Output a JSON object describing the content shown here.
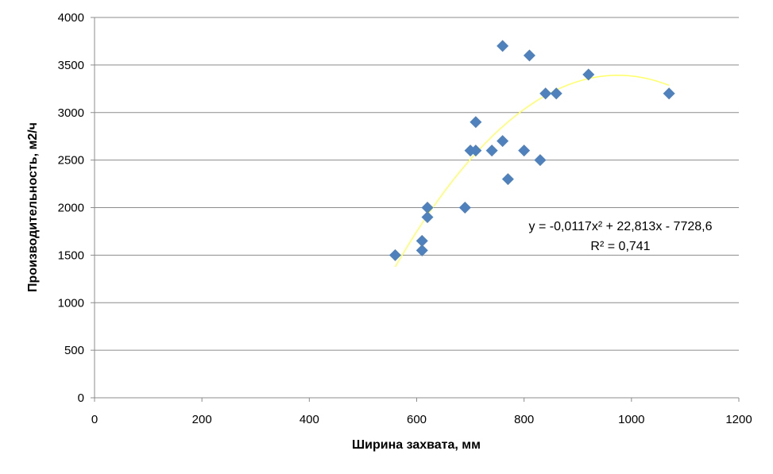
{
  "chart_data": {
    "type": "scatter",
    "xlabel": "Ширина захвата, мм",
    "ylabel": "Производительность, м2/ч",
    "xlim": [
      0,
      1200
    ],
    "ylim": [
      0,
      4000
    ],
    "x_ticks": [
      0,
      200,
      400,
      600,
      800,
      1000,
      1200
    ],
    "y_ticks": [
      0,
      500,
      1000,
      1500,
      2000,
      2500,
      3000,
      3500,
      4000
    ],
    "grid": "horizontal",
    "marker": "diamond",
    "colors": {
      "points": "#4f81bd",
      "trendline": "#ffff66",
      "grid": "#8c8c8c"
    },
    "points": [
      {
        "x": 560,
        "y": 1500
      },
      {
        "x": 610,
        "y": 1650
      },
      {
        "x": 610,
        "y": 1550
      },
      {
        "x": 620,
        "y": 2000
      },
      {
        "x": 620,
        "y": 1900
      },
      {
        "x": 690,
        "y": 2000
      },
      {
        "x": 700,
        "y": 2600
      },
      {
        "x": 710,
        "y": 2600
      },
      {
        "x": 710,
        "y": 2900
      },
      {
        "x": 740,
        "y": 2600
      },
      {
        "x": 760,
        "y": 2700
      },
      {
        "x": 760,
        "y": 3700
      },
      {
        "x": 770,
        "y": 2300
      },
      {
        "x": 800,
        "y": 2600
      },
      {
        "x": 810,
        "y": 3600
      },
      {
        "x": 830,
        "y": 2500
      },
      {
        "x": 840,
        "y": 3200
      },
      {
        "x": 860,
        "y": 3200
      },
      {
        "x": 920,
        "y": 3400
      },
      {
        "x": 1070,
        "y": 3200
      }
    ],
    "trendline": {
      "type": "polynomial",
      "coefficients": [
        -0.0117,
        22.813,
        -7728.6
      ],
      "x_range": [
        560,
        1070
      ],
      "equation": "y = -0,0117x² + 22,813x - 7728,6",
      "r2": "R² = 0,741"
    }
  }
}
